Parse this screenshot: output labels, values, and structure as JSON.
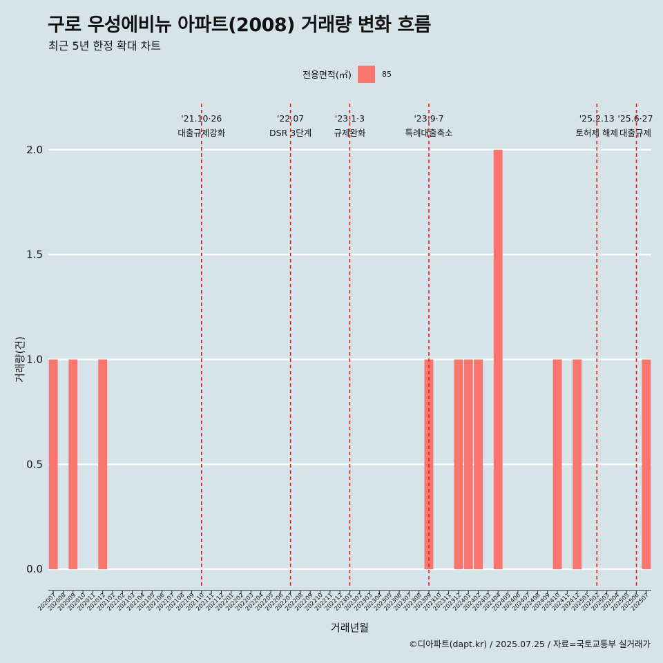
{
  "title": "구로 우성에비뉴 아파트(2008) 거래량 변화 흐름",
  "subtitle": "최근 5년 한정 확대 차트",
  "caption": "©디아파트(dapt.kr) / 2025.07.25 / 자료=국토교통부 실거래가",
  "legend": {
    "title": "전용면적(㎡)",
    "label": "85",
    "color": "#f8766d"
  },
  "chart_data": {
    "type": "bar",
    "xlabel": "거래년월",
    "ylabel": "거래량(건)",
    "ylim": [
      -0.085,
      2.22
    ],
    "yticks": [
      0.0,
      0.5,
      1.0,
      1.5,
      2.0
    ],
    "ytick_labels": [
      "0.0",
      "0.5",
      "1.0",
      "1.5",
      "2.0"
    ],
    "grid": true,
    "legend_position": "top",
    "bar_color": "#f8766d",
    "categories": [
      "202007",
      "202008",
      "202009",
      "202010",
      "202011",
      "202012",
      "202101",
      "202102",
      "202103",
      "202104",
      "202105",
      "202106",
      "202107",
      "202108",
      "202109",
      "202110",
      "202111",
      "202112",
      "202201",
      "202202",
      "202203",
      "202204",
      "202205",
      "202206",
      "202207",
      "202208",
      "202209",
      "202210",
      "202211",
      "202212",
      "202301",
      "202302",
      "202303",
      "202304",
      "202305",
      "202306",
      "202307",
      "202308",
      "202309",
      "202310",
      "202311",
      "202312",
      "202401",
      "202402",
      "202403",
      "202404",
      "202405",
      "202406",
      "202407",
      "202408",
      "202409",
      "202410",
      "202411",
      "202412",
      "202501",
      "202502",
      "202503",
      "202504",
      "202505",
      "202506",
      "202507"
    ],
    "series": [
      {
        "name": "85",
        "values": [
          1,
          0,
          1,
          0,
          0,
          1,
          0,
          0,
          0,
          0,
          0,
          0,
          0,
          0,
          0,
          0,
          0,
          0,
          0,
          0,
          0,
          0,
          0,
          0,
          0,
          0,
          0,
          0,
          0,
          0,
          0,
          0,
          0,
          0,
          0,
          0,
          0,
          0,
          1,
          0,
          0,
          1,
          1,
          1,
          0,
          2,
          0,
          0,
          0,
          0,
          0,
          1,
          0,
          1,
          0,
          0,
          0,
          0,
          0,
          0,
          1
        ]
      }
    ],
    "annotations": [
      {
        "date": "'21.10·26",
        "label": "대출규제강화",
        "x": "202110"
      },
      {
        "date": "'22.07",
        "label": "DSR 3단계",
        "x": "202207"
      },
      {
        "date": "'23.1·3",
        "label": "규제완화",
        "x": "202301"
      },
      {
        "date": "'23.9·7",
        "label": "특례대출축소",
        "x": "202309"
      },
      {
        "date": "'25.2.13",
        "label": "토허제 해제",
        "x": "202502"
      },
      {
        "date": "'25.6·27",
        "label": "대출규제",
        "x": "202506"
      }
    ]
  }
}
